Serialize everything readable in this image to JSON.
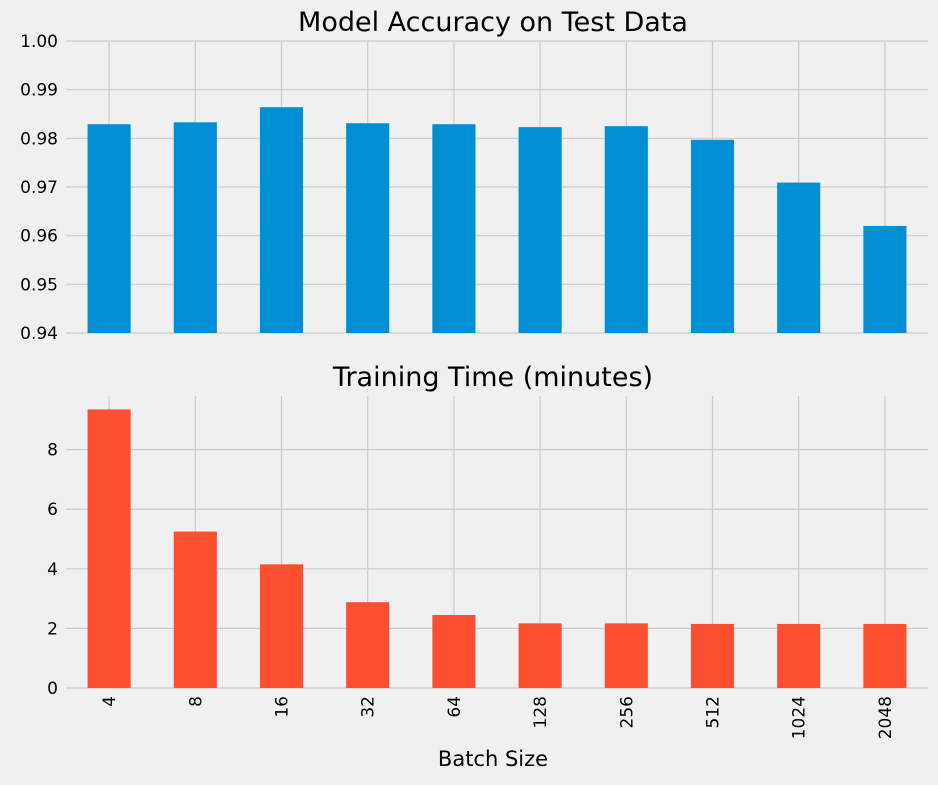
{
  "chart_data": [
    {
      "type": "bar",
      "title": "Model Accuracy on Test Data",
      "categories": [
        "4",
        "8",
        "16",
        "32",
        "64",
        "128",
        "256",
        "512",
        "1024",
        "2048"
      ],
      "values": [
        0.9829,
        0.9833,
        0.9864,
        0.9831,
        0.9829,
        0.9823,
        0.9825,
        0.9797,
        0.9709,
        0.962
      ],
      "xlabel": "",
      "ylabel": "",
      "ylim": [
        0.94,
        1.0
      ],
      "yticks": [
        "0.94",
        "0.95",
        "0.96",
        "0.97",
        "0.98",
        "0.99",
        "1.00"
      ],
      "color": "#008fd5",
      "grid": true,
      "show_x_tick_labels": false
    },
    {
      "type": "bar",
      "title": "Training Time (minutes)",
      "categories": [
        "4",
        "8",
        "16",
        "32",
        "64",
        "128",
        "256",
        "512",
        "1024",
        "2048"
      ],
      "values": [
        9.35,
        5.25,
        4.15,
        2.88,
        2.45,
        2.17,
        2.17,
        2.15,
        2.15,
        2.15
      ],
      "xlabel": "Batch Size",
      "ylabel": "",
      "ylim": [
        0,
        9.8
      ],
      "yticks": [
        "0",
        "2",
        "4",
        "6",
        "8"
      ],
      "color": "#fc4f30",
      "grid": true,
      "show_x_tick_labels": true
    }
  ]
}
